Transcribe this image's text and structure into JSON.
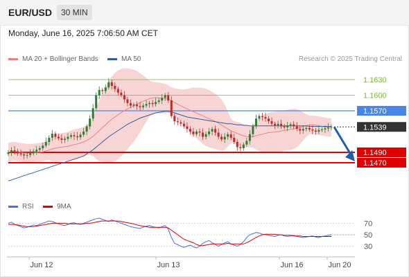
{
  "header": {
    "symbol": "EUR/USD",
    "interval": "30 MIN"
  },
  "datetime": "Monday, June 16, 2025 7:06:50 AM CET",
  "credit": "Research © 2025 Trading Central",
  "colors": {
    "resistance": "#4a86e8",
    "support": "#e00000",
    "target": "#7cb342",
    "bollinger": "#f6c7c7",
    "ma20": "#f08080",
    "ma50": "#2f5d9e",
    "candle_up": "#2e7d32",
    "candle_down": "#c62828",
    "arrow": "#1f5fa8",
    "current": "#333333",
    "rsi": "#4a6fd8",
    "rsi_ma": "#e00000"
  },
  "chart_data": [
    {
      "type": "candlestick",
      "x_ticks": [
        "Jun 12",
        "Jun 13",
        "Jun 16",
        "Jun 20"
      ],
      "ylim": [
        1.141,
        1.165
      ],
      "legend": [
        {
          "name": "MA 20 + Bollinger Bands",
          "color": "#f08080"
        },
        {
          "name": "MA 50",
          "color": "#2f5d9e"
        }
      ],
      "levels": [
        {
          "value": 1.163,
          "label": "1.1630",
          "kind": "target"
        },
        {
          "value": 1.16,
          "label": "1.1600",
          "kind": "target"
        },
        {
          "value": 1.157,
          "label": "1.1570",
          "kind": "resistance"
        },
        {
          "value": 1.1539,
          "label": "1.1539",
          "kind": "current"
        },
        {
          "value": 1.149,
          "label": "1.1490",
          "kind": "support"
        },
        {
          "value": 1.147,
          "label": "1.1470",
          "kind": "support"
        }
      ],
      "close": [
        1.149,
        1.1494,
        1.1492,
        1.1488,
        1.1486,
        1.1484,
        1.1485,
        1.1488,
        1.1492,
        1.1495,
        1.1498,
        1.1503,
        1.151,
        1.1518,
        1.1526,
        1.152,
        1.1517,
        1.1514,
        1.1516,
        1.152,
        1.1523,
        1.1521,
        1.1519,
        1.1524,
        1.153,
        1.154,
        1.1555,
        1.1575,
        1.16,
        1.161,
        1.1608,
        1.1615,
        1.1625,
        1.1618,
        1.1612,
        1.1605,
        1.16,
        1.1592,
        1.1585,
        1.158,
        1.1582,
        1.1579,
        1.1577,
        1.158,
        1.1583,
        1.1585,
        1.1583,
        1.1587,
        1.159,
        1.1595,
        1.16,
        1.159,
        1.156,
        1.155,
        1.1548,
        1.1545,
        1.154,
        1.1535,
        1.153,
        1.1525,
        1.153,
        1.1528,
        1.152,
        1.1525,
        1.153,
        1.1535,
        1.1528,
        1.152,
        1.1515,
        1.152,
        1.1525,
        1.1518,
        1.151,
        1.15,
        1.1498,
        1.1505,
        1.1512,
        1.1525,
        1.154,
        1.1555,
        1.156,
        1.1558,
        1.1555,
        1.155,
        1.1545,
        1.1542,
        1.1545,
        1.154,
        1.1538,
        1.1542,
        1.1544,
        1.154,
        1.1535,
        1.1532,
        1.1535,
        1.1537,
        1.1534,
        1.1532,
        1.153,
        1.1533,
        1.1534,
        1.1536,
        1.1538,
        1.1539
      ],
      "ma50": [
        1.1435,
        1.1437,
        1.1439,
        1.1441,
        1.1443,
        1.1445,
        1.1447,
        1.1449,
        1.1451,
        1.1453,
        1.1455,
        1.1457,
        1.1459,
        1.1461,
        1.1463,
        1.1465,
        1.1467,
        1.1469,
        1.1471,
        1.1473,
        1.1475,
        1.1477,
        1.1479,
        1.1481,
        1.1483,
        1.1487,
        1.1491,
        1.1495,
        1.15,
        1.1505,
        1.151,
        1.1515,
        1.152,
        1.1524,
        1.1528,
        1.1532,
        1.1536,
        1.154,
        1.1544,
        1.1547,
        1.155,
        1.1553,
        1.1556,
        1.1558,
        1.156,
        1.1562,
        1.1564,
        1.1566,
        1.1567,
        1.1568,
        1.1569,
        1.1569,
        1.1568,
        1.1566,
        1.1564,
        1.1562,
        1.156,
        1.1558,
        1.1557,
        1.1556,
        1.1555,
        1.1554,
        1.1553,
        1.1552,
        1.1551,
        1.155,
        1.1549,
        1.1548,
        1.1547,
        1.1546,
        1.1545,
        1.1545,
        1.1544,
        1.1543,
        1.1543,
        1.1542,
        1.1542,
        1.1541,
        1.1541,
        1.1541,
        1.1541,
        1.1541,
        1.1541,
        1.1541,
        1.1541,
        1.1541,
        1.1541,
        1.1541,
        1.1541,
        1.1541,
        1.1541,
        1.1541,
        1.1541,
        1.1541,
        1.1541,
        1.1541,
        1.154,
        1.154,
        1.154,
        1.154,
        1.154,
        1.154,
        1.154,
        1.154
      ]
    },
    {
      "type": "line",
      "legend": [
        {
          "name": "RSI",
          "color": "#4a6fd8"
        },
        {
          "name": "9MA",
          "color": "#e00000"
        }
      ],
      "yticks": [
        70,
        50,
        30
      ],
      "ylim": [
        15,
        85
      ],
      "rsi": [
        70,
        72,
        68,
        66,
        64,
        62,
        63,
        65,
        67,
        66,
        68,
        70,
        72,
        74,
        73,
        71,
        69,
        67,
        66,
        68,
        70,
        71,
        69,
        68,
        70,
        72,
        74,
        76,
        78,
        79,
        77,
        75,
        73,
        76,
        74,
        72,
        70,
        68,
        66,
        64,
        63,
        62,
        61,
        63,
        65,
        66,
        64,
        63,
        62,
        64,
        66,
        60,
        45,
        35,
        33,
        30,
        28,
        30,
        32,
        29,
        27,
        30,
        35,
        38,
        40,
        36,
        33,
        30,
        33,
        36,
        38,
        34,
        32,
        30,
        33,
        38,
        45,
        50,
        52,
        54,
        53,
        51,
        50,
        49,
        48,
        47,
        49,
        50,
        48,
        47,
        48,
        49,
        47,
        46,
        45,
        46,
        47,
        48,
        46,
        45,
        47,
        48,
        49,
        50
      ],
      "rsi_ma": [
        68,
        68,
        68,
        67,
        66,
        65,
        64,
        64,
        64,
        65,
        66,
        67,
        68,
        69,
        70,
        70,
        70,
        70,
        70,
        69,
        69,
        69,
        69,
        69,
        69,
        70,
        70,
        71,
        72,
        73,
        74,
        74,
        74,
        74,
        74,
        74,
        73,
        72,
        71,
        70,
        69,
        67,
        66,
        65,
        64,
        63,
        63,
        63,
        63,
        63,
        63,
        62,
        58,
        54,
        50,
        46,
        42,
        40,
        38,
        36,
        33,
        31,
        31,
        32,
        33,
        34,
        34,
        34,
        34,
        34,
        35,
        34,
        34,
        34,
        34,
        34,
        36,
        39,
        42,
        45,
        48,
        50,
        51,
        51,
        51,
        51,
        50,
        50,
        49,
        49,
        49,
        48,
        48,
        48,
        47,
        47,
        47,
        47,
        47,
        47,
        47,
        47,
        47,
        47
      ]
    }
  ]
}
